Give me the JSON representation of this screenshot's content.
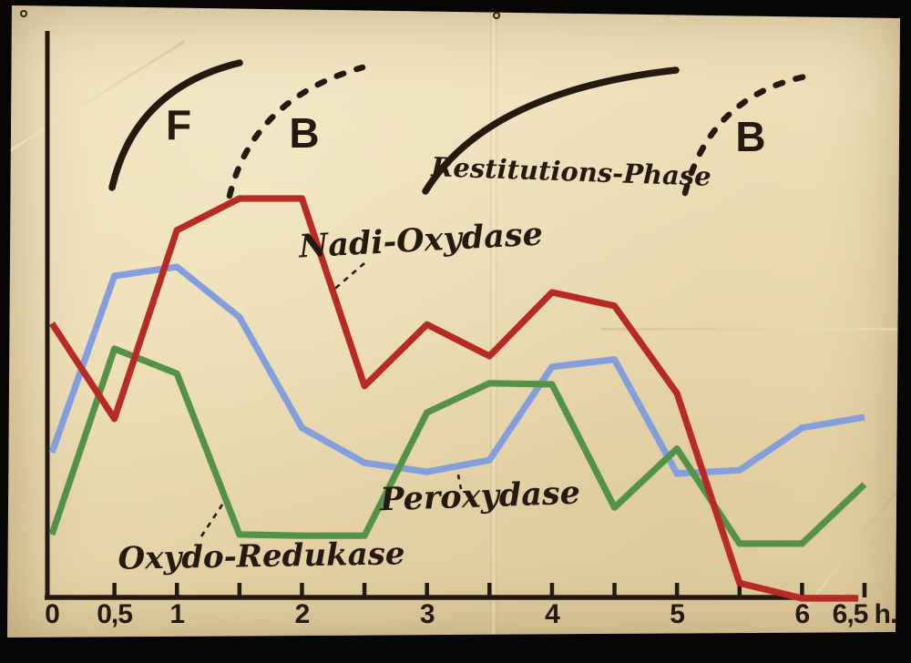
{
  "colors": {
    "ink": "#241a10",
    "paper": "#ecdcb4",
    "red": "#b82b24",
    "blue": "#839edd",
    "green": "#549347"
  },
  "chart_data": {
    "type": "line",
    "title": "",
    "xlabel": "h.",
    "ylabel": "",
    "y_note": "unlabeled vertical axis; values estimated as % of plot height (relative enzyme activity)",
    "xlim": [
      0,
      6.5
    ],
    "ylim": [
      0,
      100
    ],
    "grid": false,
    "x_ticks": [
      0,
      0.5,
      1,
      1.5,
      2,
      2.5,
      3,
      3.5,
      4,
      4.5,
      5,
      5.5,
      6,
      6.5
    ],
    "x_tick_labels": [
      {
        "t": 0,
        "label": "0"
      },
      {
        "t": 0.5,
        "label": "0,5"
      },
      {
        "t": 1,
        "label": "1"
      },
      {
        "t": 2,
        "label": "2"
      },
      {
        "t": 3,
        "label": "3"
      },
      {
        "t": 4,
        "label": "4"
      },
      {
        "t": 5,
        "label": "5"
      },
      {
        "t": 6,
        "label": "6"
      },
      {
        "t": 6.5,
        "label": "6,5 h."
      }
    ],
    "series": [
      {
        "name": "Nadi-Oxydase",
        "color": "#b82b24",
        "z": 3,
        "x": [
          0,
          0.5,
          1,
          1.5,
          2,
          2.5,
          3,
          3.5,
          4,
          4.5,
          5,
          5.5,
          6,
          6.45
        ],
        "values": [
          48.7,
          31.8,
          65.2,
          70.8,
          70.8,
          37.6,
          48.5,
          42.9,
          54.2,
          51.8,
          36.3,
          2.7,
          0.0,
          0.0
        ]
      },
      {
        "name": "Peroxydase",
        "color": "#839edd",
        "z": 1,
        "x": [
          0,
          0.5,
          1,
          1.5,
          2,
          2.5,
          3,
          3.5,
          4,
          4.5,
          5,
          5.5,
          6,
          6.5
        ],
        "values": [
          25.8,
          57.1,
          58.7,
          49.8,
          30.2,
          24.0,
          22.4,
          24.5,
          41.0,
          42.3,
          22.1,
          22.7,
          30.2,
          32.1
        ]
      },
      {
        "name": "Oxydo-Redukase",
        "color": "#549347",
        "z": 2,
        "x": [
          0,
          0.5,
          1,
          1.5,
          2,
          2.5,
          3,
          3.5,
          4,
          4.5,
          5,
          5.5,
          6,
          6.5
        ],
        "values": [
          11.3,
          44.2,
          39.8,
          11.3,
          11.1,
          11.1,
          32.9,
          38.1,
          37.9,
          16.1,
          26.5,
          9.7,
          9.7,
          20.2
        ]
      }
    ],
    "annotations": [
      {
        "label": "F",
        "curve": "solid-arc",
        "t_range": [
          0.5,
          1.5
        ]
      },
      {
        "label": "B",
        "curve": "dashed-arc",
        "t_range": [
          1.4,
          2.5
        ]
      },
      {
        "label": "Restitutions-Phase",
        "curve": "solid-arc",
        "t_range": [
          3.0,
          5.0
        ]
      },
      {
        "label": "B",
        "curve": "dashed-arc",
        "t_range": [
          5.1,
          6.1
        ]
      }
    ]
  }
}
